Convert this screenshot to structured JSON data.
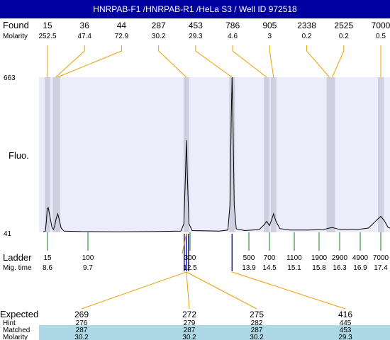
{
  "title": "HNRPAB-F1 /HNRPAB-R1 /HeLa S3 / Well ID 972518",
  "labels": {
    "found": "Found",
    "molarity": "Molarity",
    "fluo": "Fluo.",
    "ladder": "Ladder",
    "mig_time": "Mig. time",
    "expected": "Expected",
    "hint": "Hint",
    "matched": "Matched",
    "molarity_bottom": "Molarity"
  },
  "colors": {
    "title_bg": "#0000a0",
    "plot_bg": "#ececfa",
    "band": "#cfcfdf",
    "found_line": "#e8a000",
    "ladder_line": "#1a7a1a",
    "marker_line": "#1a1aa0",
    "matched_row": "#add8e6"
  },
  "chart_data": {
    "type": "line",
    "y_axis": {
      "max_label": "663",
      "min_label": "41",
      "ylim": [
        41,
        663
      ]
    },
    "found_peaks": [
      {
        "size": "15",
        "molarity": "252.5",
        "mig_time": 8.6
      },
      {
        "size": "36",
        "molarity": "47.4",
        "mig_time": 8.82
      },
      {
        "size": "44",
        "molarity": "72.9",
        "mig_time": 8.87
      },
      {
        "size": "287",
        "molarity": "30.2",
        "mig_time": 12.4
      },
      {
        "size": "453",
        "molarity": "29.3",
        "mig_time": 13.5
      },
      {
        "size": "786",
        "molarity": "4.6",
        "mig_time": 14.42
      },
      {
        "size": "905",
        "molarity": "3",
        "mig_time": 14.6
      },
      {
        "size": "2338",
        "molarity": "0.2",
        "mig_time": 16.05
      },
      {
        "size": "2525",
        "molarity": "0.2",
        "mig_time": 16.12
      },
      {
        "size": "7000",
        "molarity": "0.5",
        "mig_time": 17.4
      }
    ],
    "ladder": [
      {
        "size": "15",
        "mig_time": "8.6"
      },
      {
        "size": "100",
        "mig_time": "9.7"
      },
      {
        "size": "300",
        "mig_time": "12.5"
      },
      {
        "size": "500",
        "mig_time": "13.9"
      },
      {
        "size": "700",
        "mig_time": "14.5"
      },
      {
        "size": "1100",
        "mig_time": "15.1"
      },
      {
        "size": "1900",
        "mig_time": "15.8"
      },
      {
        "size": "2900",
        "mig_time": "16.3"
      },
      {
        "size": "4900",
        "mig_time": "16.9"
      },
      {
        "size": "7000",
        "mig_time": "17.4"
      }
    ],
    "trace": [
      [
        8.3,
        43
      ],
      [
        8.45,
        46
      ],
      [
        8.52,
        85
      ],
      [
        8.58,
        135
      ],
      [
        8.62,
        140
      ],
      [
        8.66,
        110
      ],
      [
        8.72,
        62
      ],
      [
        8.76,
        52
      ],
      [
        8.8,
        70
      ],
      [
        8.84,
        98
      ],
      [
        8.88,
        115
      ],
      [
        8.92,
        92
      ],
      [
        8.97,
        58
      ],
      [
        9.05,
        46
      ],
      [
        9.5,
        44
      ],
      [
        10.5,
        43
      ],
      [
        11.5,
        44
      ],
      [
        12.25,
        46
      ],
      [
        12.33,
        75
      ],
      [
        12.37,
        250
      ],
      [
        12.4,
        410
      ],
      [
        12.43,
        250
      ],
      [
        12.47,
        75
      ],
      [
        12.55,
        48
      ],
      [
        13.2,
        46
      ],
      [
        13.4,
        50
      ],
      [
        13.45,
        150
      ],
      [
        13.48,
        500
      ],
      [
        13.5,
        663
      ],
      [
        13.52,
        500
      ],
      [
        13.55,
        150
      ],
      [
        13.6,
        55
      ],
      [
        13.8,
        48
      ],
      [
        14.2,
        52
      ],
      [
        14.35,
        72
      ],
      [
        14.42,
        85
      ],
      [
        14.5,
        68
      ],
      [
        14.55,
        90
      ],
      [
        14.6,
        115
      ],
      [
        14.66,
        85
      ],
      [
        14.75,
        56
      ],
      [
        15.0,
        50
      ],
      [
        15.5,
        50
      ],
      [
        15.9,
        52
      ],
      [
        16.05,
        58
      ],
      [
        16.12,
        60
      ],
      [
        16.3,
        53
      ],
      [
        16.8,
        52
      ],
      [
        17.1,
        58
      ],
      [
        17.3,
        90
      ],
      [
        17.4,
        105
      ],
      [
        17.5,
        88
      ],
      [
        17.6,
        62
      ],
      [
        17.7,
        55
      ]
    ],
    "marker_time": 12.4,
    "expected_rows": {
      "expected": [
        "269",
        "272",
        "275",
        "416"
      ],
      "hint": [
        "276",
        "279",
        "282",
        "445"
      ],
      "matched": [
        "287",
        "287",
        "287",
        "453"
      ],
      "molarity": [
        "30.2",
        "30.2",
        "30.2",
        "29.3"
      ]
    }
  }
}
